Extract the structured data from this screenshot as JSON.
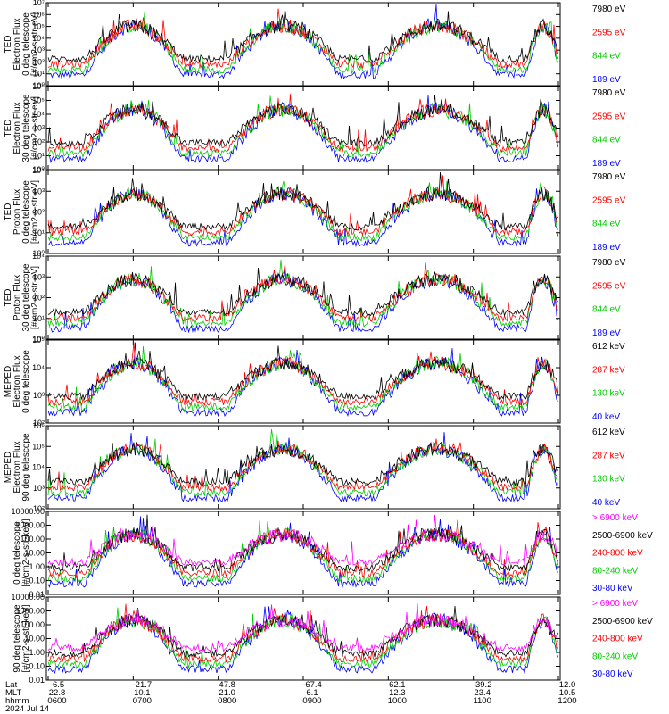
{
  "chart_data": {
    "type": "line",
    "footer": {
      "row_labels": [
        "Lat",
        "MLT",
        "hhmm",
        "2024 Jul 14"
      ],
      "columns": [
        {
          "lat": "-6.5",
          "mlt": "22.8",
          "hhmm": "0600"
        },
        {
          "lat": "-21.7",
          "mlt": "10.1",
          "hhmm": "0700"
        },
        {
          "lat": "47.8",
          "mlt": "21.0",
          "hhmm": "0800"
        },
        {
          "lat": "-67.4",
          "mlt": "6.1",
          "hhmm": "0900"
        },
        {
          "lat": "62.1",
          "mlt": "12.3",
          "hhmm": "1000"
        },
        {
          "lat": "-39.2",
          "mlt": "23.4",
          "hhmm": "1100"
        },
        {
          "lat": "12.0",
          "mlt": "10.5",
          "hhmm": "1200"
        }
      ]
    },
    "panels": [
      {
        "ylabel": [
          "TED",
          "Electron Flux",
          "0 deg telescope",
          "[#/cm2-s-str-eV]"
        ],
        "yscale": "log",
        "yticks": [
          "10⁰",
          "10¹",
          "10²",
          "10³",
          "10⁴",
          "10⁵",
          "10⁶",
          "10⁷"
        ],
        "legend": [
          {
            "label": "7980 eV",
            "color": "#000000"
          },
          {
            "label": "2595 eV",
            "color": "#ff0000"
          },
          {
            "label": "844 eV",
            "color": "#00cc00"
          },
          {
            "label": "189 eV",
            "color": "#0000ff"
          }
        ]
      },
      {
        "ylabel": [
          "TED",
          "Electron Flux",
          "30 deg telescope",
          "[#/cm2-s-str-eV]"
        ],
        "yscale": "log",
        "yticks": [
          "10⁰",
          "10¹",
          "10²",
          "10³",
          "10⁴",
          "10⁵",
          "10⁶"
        ],
        "legend": [
          {
            "label": "7980 eV",
            "color": "#000000"
          },
          {
            "label": "2595 eV",
            "color": "#ff0000"
          },
          {
            "label": "844 eV",
            "color": "#00cc00"
          },
          {
            "label": "189 eV",
            "color": "#0000ff"
          }
        ]
      },
      {
        "ylabel": [
          "TED",
          "Proton Flux",
          "0 deg telescope",
          "[#/cm2-s-str-eV]"
        ],
        "yscale": "log",
        "yticks": [
          "10⁰",
          "10¹",
          "10²",
          "10³",
          "10⁴"
        ],
        "legend": [
          {
            "label": "7980 eV",
            "color": "#000000"
          },
          {
            "label": "2595 eV",
            "color": "#ff0000"
          },
          {
            "label": "844 eV",
            "color": "#00cc00"
          },
          {
            "label": "189 eV",
            "color": "#0000ff"
          }
        ]
      },
      {
        "ylabel": [
          "TED",
          "Proton Flux",
          "30 deg telescope",
          "[#/cm2-s-str-eV]"
        ],
        "yscale": "log",
        "yticks": [
          "10⁰",
          "10¹",
          "10²",
          "10³",
          "10⁴"
        ],
        "legend": [
          {
            "label": "7980 eV",
            "color": "#000000"
          },
          {
            "label": "2595 eV",
            "color": "#ff0000"
          },
          {
            "label": "844 eV",
            "color": "#00cc00"
          },
          {
            "label": "189 eV",
            "color": "#0000ff"
          }
        ]
      },
      {
        "ylabel": [
          "MEPED",
          "Electron Flux",
          "0 deg telescope",
          ""
        ],
        "yscale": "log",
        "yticks": [
          "10²",
          "10³",
          "10⁴",
          "10⁵"
        ],
        "legend": [
          {
            "label": "612 keV",
            "color": "#000000"
          },
          {
            "label": "287 keV",
            "color": "#ff0000"
          },
          {
            "label": "130 keV",
            "color": "#00cc00"
          },
          {
            "label": "40 keV",
            "color": "#0000ff"
          }
        ]
      },
      {
        "ylabel": [
          "MEPED",
          "Electron Flux",
          "90 deg telescope",
          ""
        ],
        "yscale": "log",
        "yticks": [
          "10²",
          "10³",
          "10⁴",
          "10⁵",
          "10⁶"
        ],
        "legend": [
          {
            "label": "612 keV",
            "color": "#000000"
          },
          {
            "label": "287 keV",
            "color": "#ff0000"
          },
          {
            "label": "130 keV",
            "color": "#00cc00"
          },
          {
            "label": "40 keV",
            "color": "#0000ff"
          }
        ]
      },
      {
        "ylabel": [
          "",
          "0 deg telescope",
          "[#/cm2-s-str-keV]",
          ""
        ],
        "yscale": "log",
        "yticks": [
          "0.01",
          "0.10",
          "1.00",
          "10.00",
          "100.00",
          "1000.00",
          "10000.00"
        ],
        "legend": [
          {
            "label": "> 6900 keV",
            "color": "#ff00ff"
          },
          {
            "label": "2500-6900 keV",
            "color": "#000000"
          },
          {
            "label": "240-800 keV",
            "color": "#ff0000"
          },
          {
            "label": "80-240 keV",
            "color": "#00cc00"
          },
          {
            "label": "30-80 keV",
            "color": "#0000ff"
          }
        ]
      },
      {
        "ylabel": [
          "",
          "90 deg telescope",
          "[#/cm2-s-str-keV]",
          ""
        ],
        "yscale": "log",
        "yticks": [
          "0.01",
          "0.10",
          "1.00",
          "10.00",
          "100.00",
          "1000.00",
          "10000.00"
        ],
        "legend": [
          {
            "label": "> 6900 keV",
            "color": "#ff00ff"
          },
          {
            "label": "2500-6900 keV",
            "color": "#000000"
          },
          {
            "label": "240-800 keV",
            "color": "#ff0000"
          },
          {
            "label": "80-240 keV",
            "color": "#00cc00"
          },
          {
            "label": "30-80 keV",
            "color": "#0000ff"
          }
        ]
      }
    ]
  }
}
